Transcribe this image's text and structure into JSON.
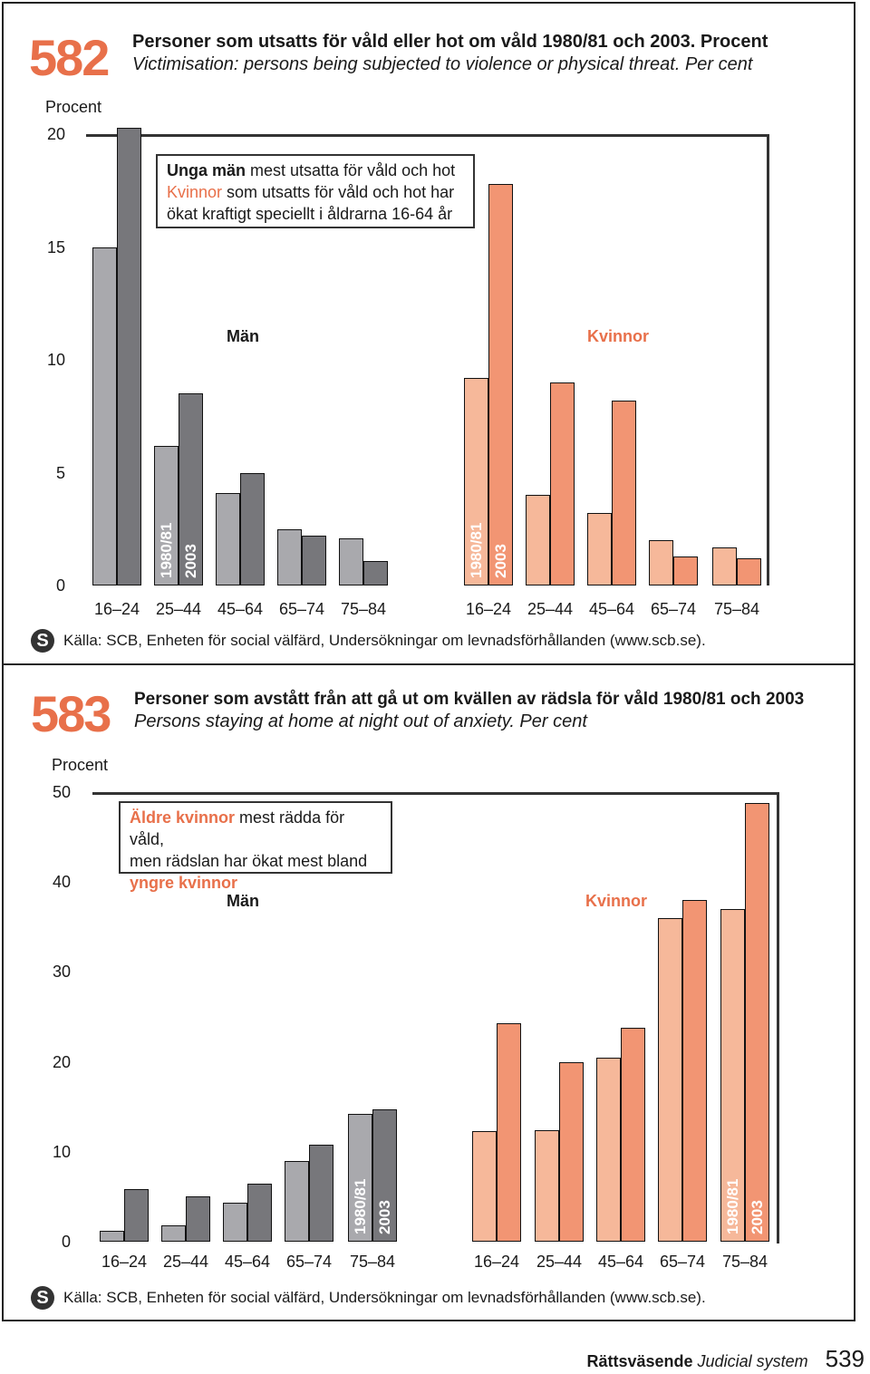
{
  "colors": {
    "accent": "#e8704a",
    "men_1980": "#a9a9ad",
    "men_2003": "#77777b",
    "women_1980": "#f6b89a",
    "women_2003": "#f29573"
  },
  "icon": "scb-logo-icon",
  "footer": {
    "section_sv": "Rättsväsende",
    "section_en": "Judicial system",
    "page": "539"
  },
  "charts": [
    {
      "number": "582",
      "title_sv": "Personer som utsatts för våld eller hot om våld 1980/81 och 2003. Procent",
      "title_en": "Victimisation: persons being subjected  to violence or physical threat. Per cent",
      "ylabel": "Procent",
      "note": {
        "line1_bold": "Unga män",
        "line1_rest": " mest utsatta för våld och hot",
        "line2_orange": "Kvinnor",
        "line2_rest": " som utsatts för våld och hot har",
        "line3": "ökat kraftigt speciellt i åldrarna 16-64 år"
      },
      "group_men": "Män",
      "group_women": "Kvinnor",
      "year_labels": [
        "1980/81",
        "2003"
      ],
      "source": "Källa: SCB, Enheten för social välfärd, Undersökningar om levnadsförhållanden (www.scb.se)."
    },
    {
      "number": "583",
      "title_sv": "Personer som avstått från att gå ut om kvällen av rädsla för våld 1980/81 och 2003",
      "title_en": "Persons staying at home at night out of anxiety. Per cent",
      "ylabel": "Procent",
      "note": {
        "line1_orange": "Äldre kvinnor",
        "line1_rest": " mest rädda för våld,",
        "line2": "men rädslan har ökat mest bland",
        "line3_orange": "yngre kvinnor"
      },
      "group_men": "Män",
      "group_women": "Kvinnor",
      "year_labels": [
        "1980/81",
        "2003"
      ],
      "source": "Källa: SCB, Enheten för social välfärd, Undersökningar om levnadsförhållanden (www.scb.se)."
    }
  ],
  "chart_data": [
    {
      "type": "bar",
      "ylim": [
        0,
        20
      ],
      "yticks": [
        "0",
        "5",
        "10",
        "15",
        "20"
      ],
      "categories": [
        "16–24",
        "25–44",
        "45–64",
        "65–74",
        "75–84"
      ],
      "groups": [
        {
          "name": "Män",
          "series": [
            {
              "name": "1980/81",
              "values": [
                15.0,
                6.2,
                4.1,
                2.5,
                2.1
              ]
            },
            {
              "name": "2003",
              "values": [
                20.3,
                8.5,
                5.0,
                2.2,
                1.1
              ]
            }
          ]
        },
        {
          "name": "Kvinnor",
          "series": [
            {
              "name": "1980/81",
              "values": [
                9.2,
                4.0,
                3.2,
                2.0,
                1.7
              ]
            },
            {
              "name": "2003",
              "values": [
                17.8,
                9.0,
                8.2,
                1.3,
                1.2
              ]
            }
          ]
        }
      ]
    },
    {
      "type": "bar",
      "ylim": [
        0,
        50
      ],
      "yticks": [
        "0",
        "10",
        "20",
        "30",
        "40",
        "50"
      ],
      "categories": [
        "16–24",
        "25–44",
        "45–64",
        "65–74",
        "75–84"
      ],
      "groups": [
        {
          "name": "Män",
          "series": [
            {
              "name": "1980/81",
              "values": [
                1.2,
                1.8,
                4.3,
                9.0,
                14.2
              ]
            },
            {
              "name": "2003",
              "values": [
                5.8,
                5.0,
                6.5,
                10.8,
                14.7
              ]
            }
          ]
        },
        {
          "name": "Kvinnor",
          "series": [
            {
              "name": "1980/81",
              "values": [
                12.3,
                12.4,
                20.5,
                36.0,
                37.0
              ]
            },
            {
              "name": "2003",
              "values": [
                24.3,
                20.0,
                23.8,
                38.0,
                48.8
              ]
            }
          ]
        }
      ]
    }
  ]
}
